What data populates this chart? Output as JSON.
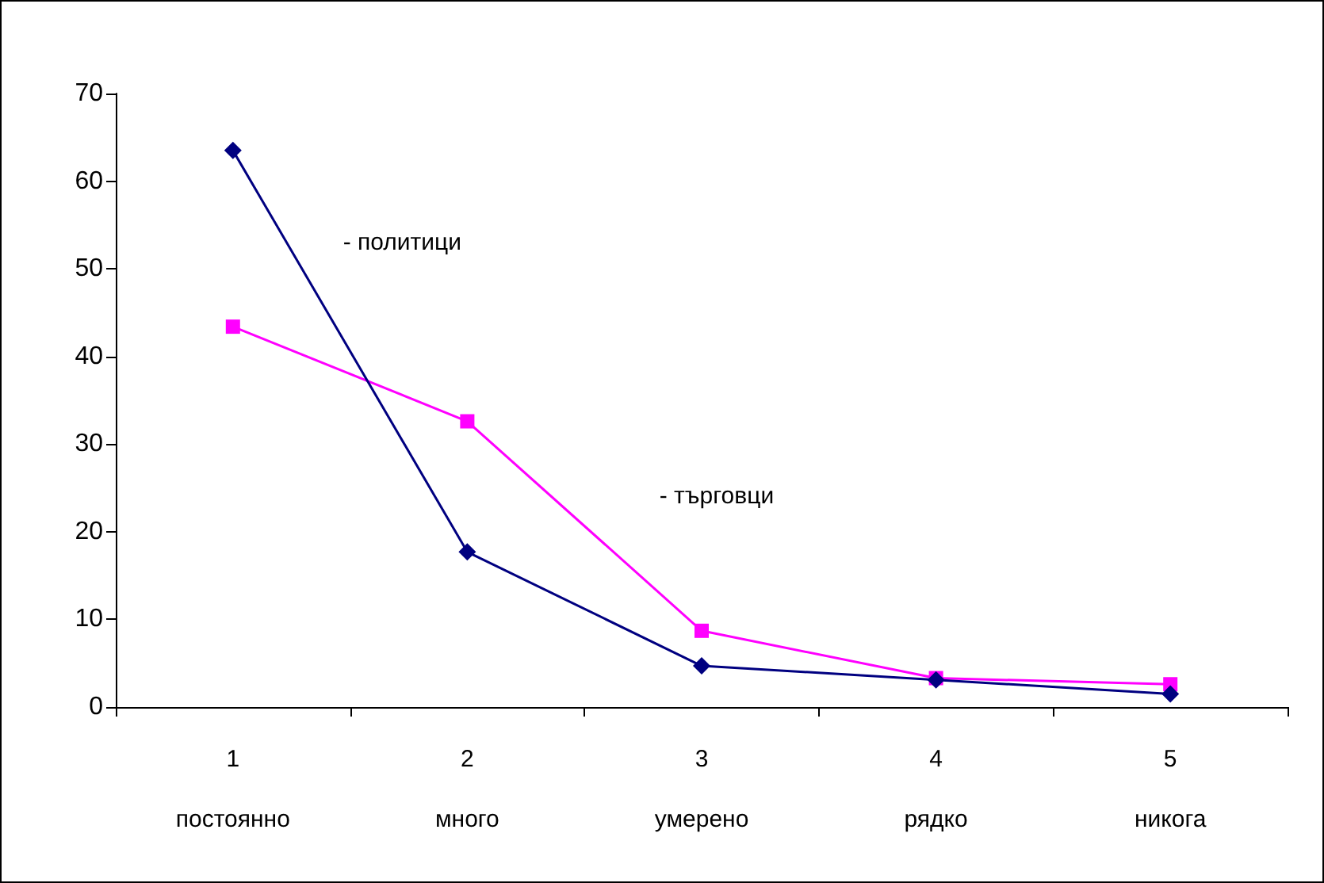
{
  "chart_data": {
    "type": "line",
    "categories": [
      "1\nпостоянно",
      "2\nмного",
      "3\nумерено",
      "4\nрядко",
      "5\nникога"
    ],
    "series": [
      {
        "name": "- политици",
        "color": "#000080",
        "marker": "diamond",
        "values": [
          63.5,
          17.7,
          4.7,
          3.1,
          1.5
        ]
      },
      {
        "name": "- търговци",
        "color": "#ff00ff",
        "marker": "square",
        "values": [
          43.4,
          32.6,
          8.7,
          3.3,
          2.6
        ]
      }
    ],
    "ylim": [
      0,
      70
    ],
    "yticks": [
      0,
      10,
      20,
      30,
      40,
      50,
      60,
      70
    ],
    "grid": false,
    "legend": false,
    "line_style": "solid"
  }
}
